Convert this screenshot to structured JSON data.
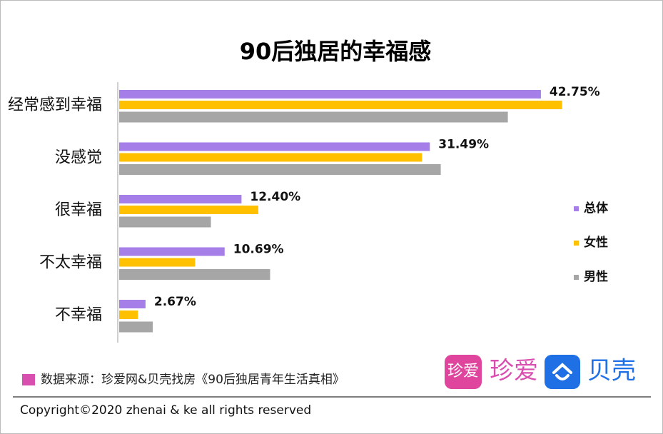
{
  "chart_data": {
    "type": "hbar",
    "title": "90后独居的幸福感",
    "categories": [
      "经常感到幸福",
      "没感觉",
      "很幸福",
      "不太幸福",
      "不幸福"
    ],
    "series": [
      {
        "name": "总体",
        "color": "#a67ee8",
        "values": [
          42.75,
          31.49,
          12.4,
          10.69,
          2.67
        ],
        "value_labels": [
          "42.75%",
          "31.49%",
          "12.40%",
          "10.69%",
          "2.67%"
        ]
      },
      {
        "name": "女性",
        "color": "#ffc000",
        "values": [
          44.9,
          30.7,
          14.1,
          7.7,
          1.9
        ]
      },
      {
        "name": "男性",
        "color": "#a6a6a6",
        "values": [
          39.4,
          32.6,
          9.3,
          15.3,
          3.4
        ]
      }
    ],
    "xlim": [
      0,
      45
    ],
    "legend": "right"
  },
  "source": "数据来源：珍爱网&贝壳找房《90后独居青年生活真相》",
  "copyright": "Copyright©2020 zhenai & ke all rights reserved",
  "logos": {
    "zhenai_icon": "珍爱",
    "zhenai": "珍爱",
    "ke": "贝壳"
  }
}
